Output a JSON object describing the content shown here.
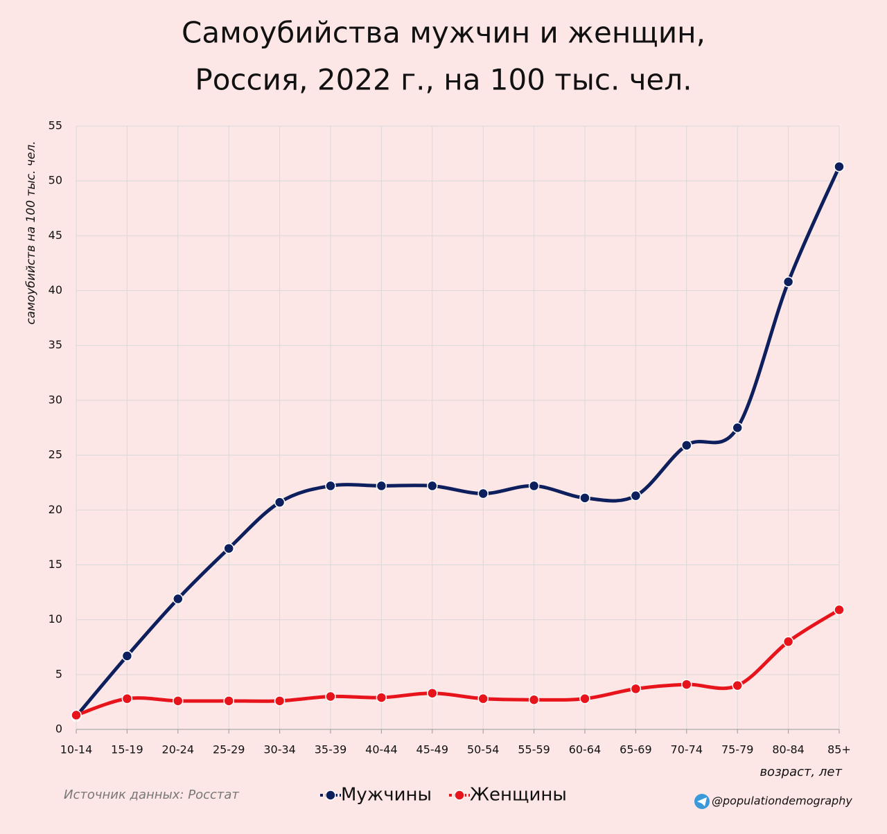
{
  "chart_data": {
    "type": "line",
    "title": [
      "Самоубийства мужчин и женщин,",
      "Россия, 2022 г., на 100 тыс. чел."
    ],
    "y_label": "самоубийств на 100 тыс. чел.",
    "x_label": "возраст, лет",
    "source": "Источник данных: Росстат",
    "credit": "@populationdemography",
    "categories": [
      "10-14",
      "15-19",
      "20-24",
      "25-29",
      "30-34",
      "35-39",
      "40-44",
      "45-49",
      "50-54",
      "55-59",
      "60-64",
      "65-69",
      "70-74",
      "75-79",
      "80-84",
      "85+"
    ],
    "series": [
      {
        "name": "Мужчины",
        "color": "#0d1f5c",
        "values": [
          1.2,
          6.7,
          11.9,
          16.5,
          20.7,
          22.2,
          22.2,
          22.2,
          21.5,
          22.2,
          21.1,
          21.3,
          25.9,
          27.5,
          40.8,
          51.3
        ]
      },
      {
        "name": "Женщины",
        "color": "#e8141c",
        "values": [
          1.3,
          2.8,
          2.6,
          2.6,
          2.6,
          3.0,
          2.9,
          3.3,
          2.8,
          2.7,
          2.8,
          3.7,
          4.1,
          4.0,
          8.0,
          10.9
        ]
      }
    ],
    "ylim": [
      0,
      55
    ],
    "yticks": [
      0,
      5,
      10,
      15,
      20,
      25,
      30,
      35,
      40,
      45,
      50,
      55
    ],
    "grid": true
  }
}
